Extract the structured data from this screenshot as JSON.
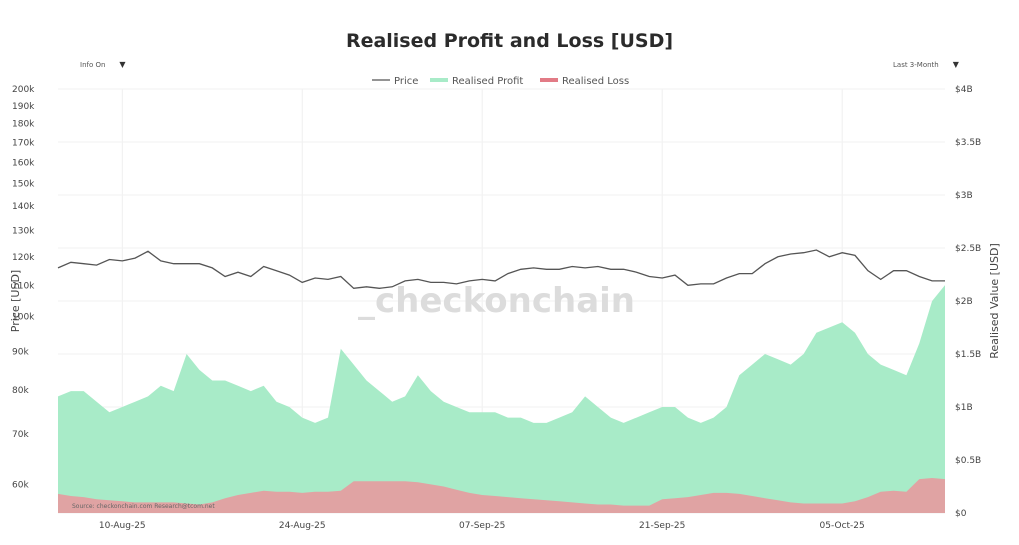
{
  "chart_data": {
    "type": "area",
    "title": "Realised Profit and Loss [USD]",
    "ylabel_left": "Price [USD]",
    "ylabel_right": "Realised Value [USD]",
    "y_left_scale": "log",
    "y_left_range": [
      55000,
      200000
    ],
    "y_left_ticks": [
      "60k",
      "70k",
      "80k",
      "90k",
      "100k",
      "110k",
      "120k",
      "130k",
      "140k",
      "150k",
      "160k",
      "170k",
      "180k",
      "190k",
      "200k"
    ],
    "y_left_tick_values": [
      60000,
      70000,
      80000,
      90000,
      100000,
      110000,
      120000,
      130000,
      140000,
      150000,
      160000,
      170000,
      180000,
      190000,
      200000
    ],
    "y_right_range": [
      0,
      4000000000
    ],
    "y_right_ticks": [
      "$0",
      "$0.5B",
      "$1B",
      "$1.5B",
      "$2B",
      "$2.5B",
      "$3B",
      "$3.5B",
      "$4B"
    ],
    "y_right_tick_values": [
      0,
      500000000,
      1000000000,
      1500000000,
      2000000000,
      2500000000,
      3000000000,
      3500000000,
      4000000000
    ],
    "x_ticks": [
      "10-Aug-25",
      "24-Aug-25",
      "07-Sep-25",
      "21-Sep-25",
      "05-Oct-25"
    ],
    "x_tick_index": [
      5,
      19,
      33,
      47,
      61
    ],
    "x_count": 70,
    "legend_position": "top-center",
    "grid": true,
    "controls": {
      "left": "Info On",
      "right": "Last 3-Month"
    },
    "watermark": "_checkonchain",
    "source": "Source: checkonchain.com   Research@tcom.net",
    "colors": {
      "price": "#555555",
      "profit": "#a8ebc8",
      "loss": "#e0a3a3",
      "loss_legend": "#e27b86"
    },
    "series": [
      {
        "name": "Price",
        "axis": "left",
        "values": [
          116000,
          118000,
          117500,
          117000,
          119000,
          118500,
          119500,
          122000,
          118500,
          117500,
          117500,
          117500,
          116000,
          113000,
          114500,
          113000,
          116500,
          115000,
          113500,
          111000,
          112500,
          112000,
          113000,
          109000,
          109500,
          109000,
          109500,
          111500,
          112000,
          111000,
          111000,
          110500,
          111500,
          112000,
          111500,
          114000,
          115500,
          116000,
          115500,
          115500,
          116500,
          116000,
          116500,
          115500,
          115500,
          114500,
          113000,
          112500,
          113500,
          110000,
          110500,
          110500,
          112500,
          114000,
          114000,
          117500,
          120000,
          121000,
          121500,
          122500,
          120000,
          121500,
          120500,
          115000,
          112000,
          115000,
          115000,
          113000,
          111500,
          111500
        ]
      },
      {
        "name": "Realised Profit",
        "axis": "right",
        "values": [
          1100000000,
          1150000000,
          1150000000,
          1050000000,
          950000000,
          1000000000,
          1050000000,
          1100000000,
          1200000000,
          1150000000,
          1500000000,
          1350000000,
          1250000000,
          1250000000,
          1200000000,
          1150000000,
          1200000000,
          1050000000,
          1000000000,
          900000000,
          850000000,
          900000000,
          1550000000,
          1400000000,
          1250000000,
          1150000000,
          1050000000,
          1100000000,
          1300000000,
          1150000000,
          1050000000,
          1000000000,
          950000000,
          950000000,
          950000000,
          900000000,
          900000000,
          850000000,
          850000000,
          900000000,
          950000000,
          1100000000,
          1000000000,
          900000000,
          850000000,
          900000000,
          950000000,
          1000000000,
          1000000000,
          900000000,
          850000000,
          900000000,
          1000000000,
          1300000000,
          1400000000,
          1500000000,
          1450000000,
          1400000000,
          1500000000,
          1700000000,
          1750000000,
          1800000000,
          1700000000,
          1500000000,
          1400000000,
          1350000000,
          1300000000,
          1600000000,
          2000000000,
          2150000000
        ]
      },
      {
        "name": "Realised Loss",
        "axis": "right",
        "values": [
          180000000,
          160000000,
          150000000,
          130000000,
          120000000,
          110000000,
          100000000,
          100000000,
          100000000,
          100000000,
          90000000,
          80000000,
          100000000,
          140000000,
          170000000,
          190000000,
          210000000,
          200000000,
          200000000,
          190000000,
          200000000,
          200000000,
          210000000,
          300000000,
          300000000,
          300000000,
          300000000,
          300000000,
          290000000,
          270000000,
          250000000,
          220000000,
          190000000,
          170000000,
          160000000,
          150000000,
          140000000,
          130000000,
          120000000,
          110000000,
          100000000,
          90000000,
          80000000,
          80000000,
          70000000,
          70000000,
          70000000,
          130000000,
          140000000,
          150000000,
          170000000,
          190000000,
          190000000,
          180000000,
          160000000,
          140000000,
          120000000,
          100000000,
          90000000,
          90000000,
          90000000,
          90000000,
          110000000,
          150000000,
          200000000,
          210000000,
          200000000,
          320000000,
          330000000,
          320000000
        ]
      }
    ]
  }
}
